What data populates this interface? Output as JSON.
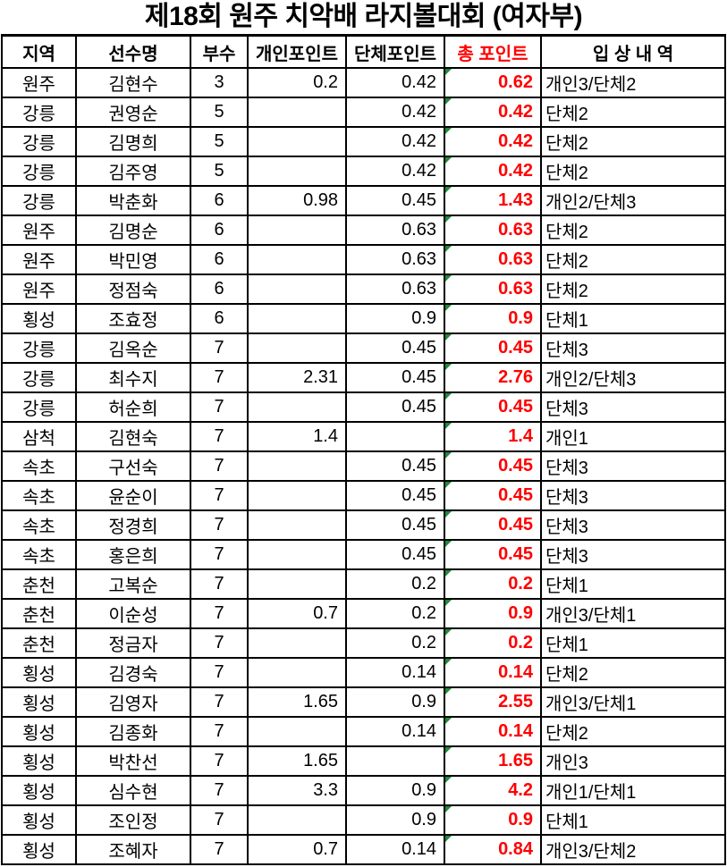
{
  "title": "제18회 원주 치악배 라지볼대회 (여자부)",
  "colors": {
    "text": "#000000",
    "background": "#FFFFFF",
    "border": "#000000",
    "total_points_red": "#FF0000",
    "header_total_red": "#FF0000",
    "formula_indicator_green": "#1F8B3D"
  },
  "chart_data": {
    "type": "table",
    "title": "제18회 원주 치악배 라지볼대회 (여자부)",
    "columns": [
      "지역",
      "선수명",
      "부수",
      "개인포인트",
      "단체포인트",
      "총 포인트",
      "입 상 내 역"
    ],
    "rows": [
      {
        "region": "원주",
        "name": "김현수",
        "division": "3",
        "individual": "0.2",
        "team": "0.42",
        "total": "0.62",
        "awards": "개인3/단체2"
      },
      {
        "region": "강릉",
        "name": "권영순",
        "division": "5",
        "individual": "",
        "team": "0.42",
        "total": "0.42",
        "awards": "단체2"
      },
      {
        "region": "강릉",
        "name": "김명희",
        "division": "5",
        "individual": "",
        "team": "0.42",
        "total": "0.42",
        "awards": "단체2"
      },
      {
        "region": "강릉",
        "name": "김주영",
        "division": "5",
        "individual": "",
        "team": "0.42",
        "total": "0.42",
        "awards": "단체2"
      },
      {
        "region": "강릉",
        "name": "박춘화",
        "division": "6",
        "individual": "0.98",
        "team": "0.45",
        "total": "1.43",
        "awards": "개인2/단체3"
      },
      {
        "region": "원주",
        "name": "김명순",
        "division": "6",
        "individual": "",
        "team": "0.63",
        "total": "0.63",
        "awards": "단체2"
      },
      {
        "region": "원주",
        "name": "박민영",
        "division": "6",
        "individual": "",
        "team": "0.63",
        "total": "0.63",
        "awards": "단체2"
      },
      {
        "region": "원주",
        "name": "정점숙",
        "division": "6",
        "individual": "",
        "team": "0.63",
        "total": "0.63",
        "awards": "단체2"
      },
      {
        "region": "횡성",
        "name": "조효정",
        "division": "6",
        "individual": "",
        "team": "0.9",
        "total": "0.9",
        "awards": "단체1"
      },
      {
        "region": "강릉",
        "name": "김옥순",
        "division": "7",
        "individual": "",
        "team": "0.45",
        "total": "0.45",
        "awards": "단체3"
      },
      {
        "region": "강릉",
        "name": "최수지",
        "division": "7",
        "individual": "2.31",
        "team": "0.45",
        "total": "2.76",
        "awards": "개인2/단체3"
      },
      {
        "region": "강릉",
        "name": "허순희",
        "division": "7",
        "individual": "",
        "team": "0.45",
        "total": "0.45",
        "awards": "단체3"
      },
      {
        "region": "삼척",
        "name": "김현숙",
        "division": "7",
        "individual": "1.4",
        "team": "",
        "total": "1.4",
        "awards": "개인1"
      },
      {
        "region": "속초",
        "name": "구선숙",
        "division": "7",
        "individual": "",
        "team": "0.45",
        "total": "0.45",
        "awards": "단체3"
      },
      {
        "region": "속초",
        "name": "윤순이",
        "division": "7",
        "individual": "",
        "team": "0.45",
        "total": "0.45",
        "awards": "단체3"
      },
      {
        "region": "속초",
        "name": "정경희",
        "division": "7",
        "individual": "",
        "team": "0.45",
        "total": "0.45",
        "awards": "단체3"
      },
      {
        "region": "속초",
        "name": "홍은희",
        "division": "7",
        "individual": "",
        "team": "0.45",
        "total": "0.45",
        "awards": "단체3"
      },
      {
        "region": "춘천",
        "name": "고복순",
        "division": "7",
        "individual": "",
        "team": "0.2",
        "total": "0.2",
        "awards": "단체1"
      },
      {
        "region": "춘천",
        "name": "이순성",
        "division": "7",
        "individual": "0.7",
        "team": "0.2",
        "total": "0.9",
        "awards": "개인3/단체1"
      },
      {
        "region": "춘천",
        "name": "정금자",
        "division": "7",
        "individual": "",
        "team": "0.2",
        "total": "0.2",
        "awards": "단체1"
      },
      {
        "region": "횡성",
        "name": "김경숙",
        "division": "7",
        "individual": "",
        "team": "0.14",
        "total": "0.14",
        "awards": "단체2"
      },
      {
        "region": "횡성",
        "name": "김영자",
        "division": "7",
        "individual": "1.65",
        "team": "0.9",
        "total": "2.55",
        "awards": "개인3/단체1"
      },
      {
        "region": "횡성",
        "name": "김종화",
        "division": "7",
        "individual": "",
        "team": "0.14",
        "total": "0.14",
        "awards": "단체2"
      },
      {
        "region": "횡성",
        "name": "박찬선",
        "division": "7",
        "individual": "1.65",
        "team": "",
        "total": "1.65",
        "awards": "개인3"
      },
      {
        "region": "횡성",
        "name": "심수현",
        "division": "7",
        "individual": "3.3",
        "team": "0.9",
        "total": "4.2",
        "awards": "개인1/단체1"
      },
      {
        "region": "횡성",
        "name": "조인정",
        "division": "7",
        "individual": "",
        "team": "0.9",
        "total": "0.9",
        "awards": "단체1"
      },
      {
        "region": "횡성",
        "name": "조혜자",
        "division": "7",
        "individual": "0.7",
        "team": "0.14",
        "total": "0.84",
        "awards": "개인3/단체2"
      }
    ]
  }
}
